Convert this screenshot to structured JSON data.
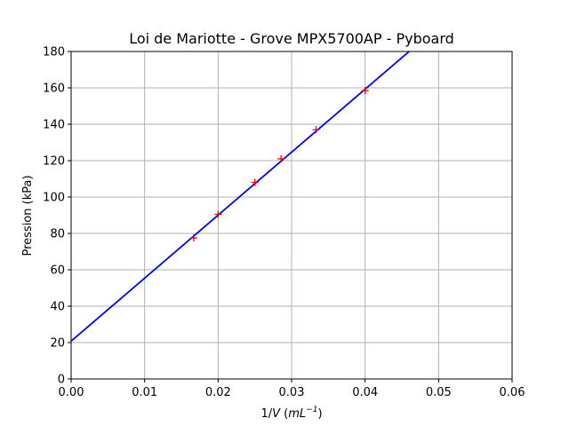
{
  "chart_data": {
    "type": "scatter",
    "title": "Loi de Mariotte - Grove MPX5700AP - Pyboard",
    "xlabel": {
      "prefix": "1/",
      "var": "V",
      "unit_open": " (",
      "unit": "mL",
      "exponent": "−1",
      "unit_close": ")"
    },
    "ylabel": "Pression (kPa)",
    "xlim": [
      0,
      0.06
    ],
    "ylim": [
      0,
      180
    ],
    "xticks": [
      0.0,
      0.01,
      0.02,
      0.03,
      0.04,
      0.05,
      0.06
    ],
    "xtick_labels": [
      "0.00",
      "0.01",
      "0.02",
      "0.03",
      "0.04",
      "0.05",
      "0.06"
    ],
    "yticks": [
      0,
      20,
      40,
      60,
      80,
      100,
      120,
      140,
      160,
      180
    ],
    "ytick_labels": [
      "0",
      "20",
      "40",
      "60",
      "80",
      "100",
      "120",
      "140",
      "160",
      "180"
    ],
    "grid": true,
    "series": [
      {
        "kind": "points",
        "marker": "+",
        "color": "#ff0000",
        "x": [
          0.01667,
          0.02,
          0.025,
          0.02857,
          0.03333,
          0.04
        ],
        "y": [
          77.5,
          90.5,
          108.0,
          121.0,
          137.0,
          158.5
        ]
      },
      {
        "kind": "fit-line",
        "color": "#0000ff",
        "slope": 3462,
        "intercept": 20.8
      }
    ]
  }
}
